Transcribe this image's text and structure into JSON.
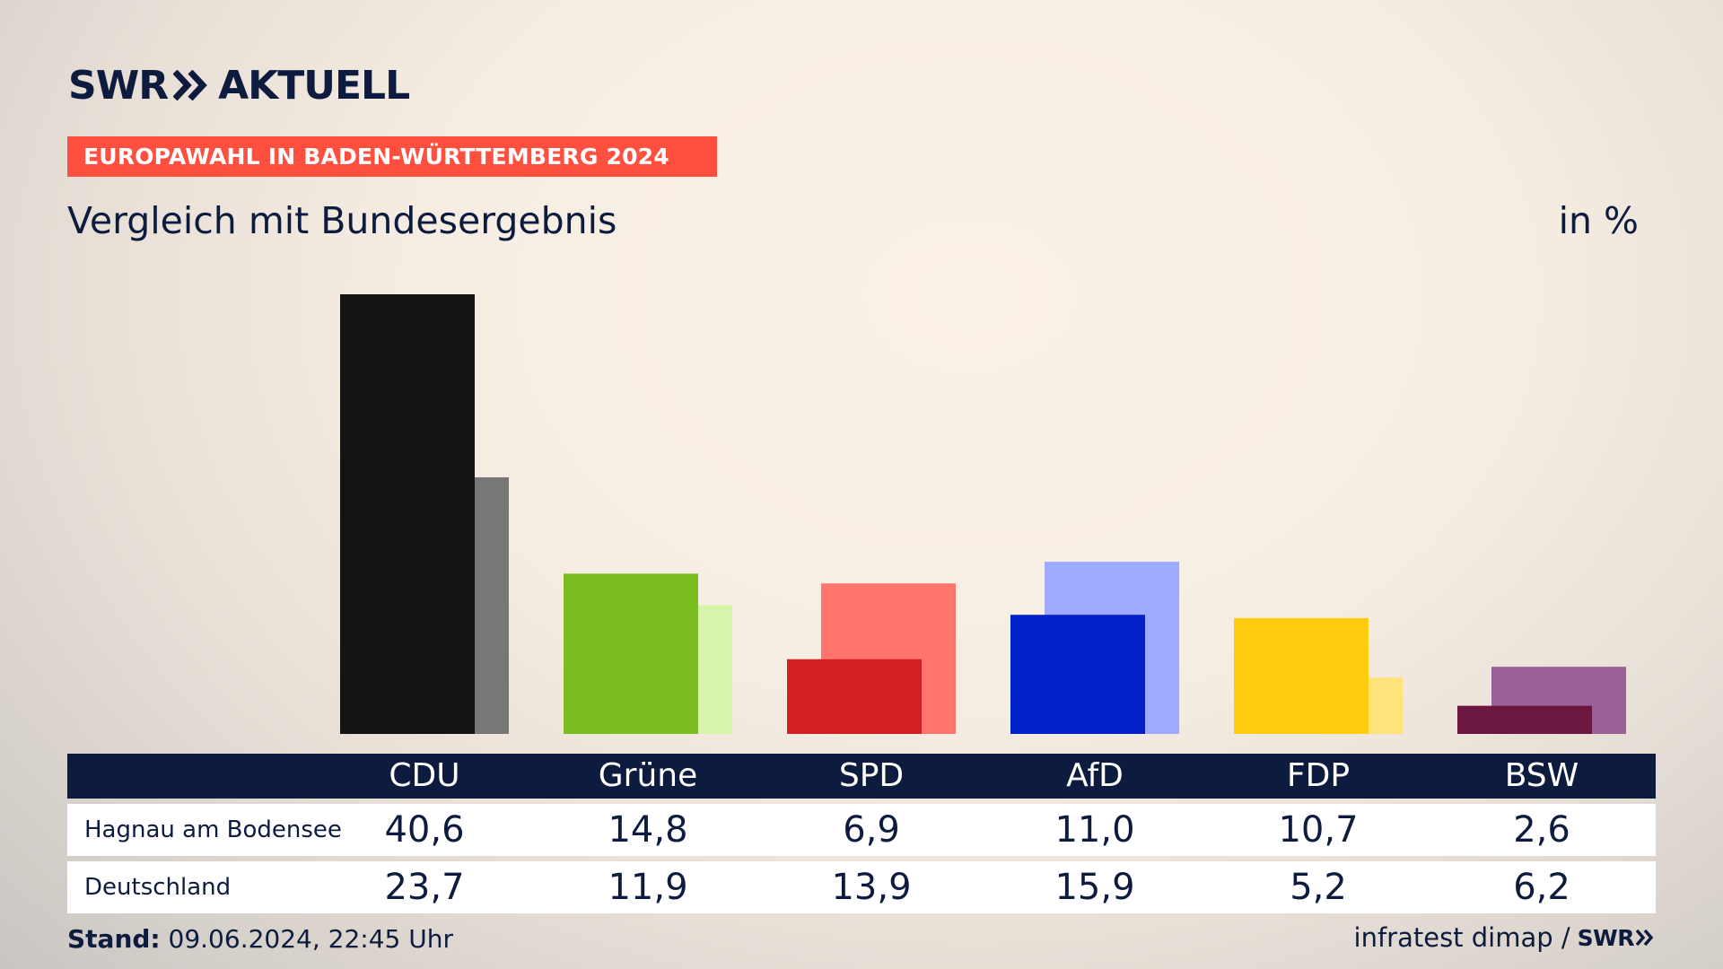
{
  "brand": {
    "name": "SWR",
    "product": "AKTUELL",
    "color": "#0d1b3e"
  },
  "banner": {
    "text": "EUROPAWAHL IN BADEN-WÜRTTEMBERG 2024",
    "color": "#fe4f3f"
  },
  "subtitle": "Vergleich mit Bundesergebnis",
  "unit": "in %",
  "chart_data": {
    "type": "bar",
    "categories": [
      "CDU",
      "Grüne",
      "SPD",
      "AfD",
      "FDP",
      "BSW"
    ],
    "series": [
      {
        "name": "Hagnau am Bodensee",
        "values": [
          40.6,
          14.8,
          6.9,
          11.0,
          10.7,
          2.6
        ],
        "colors": [
          "#131313",
          "#79bd1e",
          "#d31e22",
          "#0021c8",
          "#ffcd0d",
          "#6b173f"
        ]
      },
      {
        "name": "Deutschland",
        "values": [
          23.7,
          11.9,
          13.9,
          15.9,
          5.2,
          6.2
        ],
        "colors": [
          "#777776",
          "#d6f5aa",
          "#ff756e",
          "#9eaaff",
          "#ffe37a",
          "#9a6098"
        ]
      }
    ],
    "value_labels": [
      [
        "40,6",
        "14,8",
        "6,9",
        "11,0",
        "10,7",
        "2,6"
      ],
      [
        "23,7",
        "11,9",
        "13,9",
        "15,9",
        "5,2",
        "6,2"
      ]
    ],
    "ylim": [
      0,
      40.6
    ]
  },
  "footer": {
    "stand_label": "Stand:",
    "stand_value": "09.06.2024, 22:45 Uhr",
    "source": "infratest dimap /",
    "source_logo": "SWR"
  }
}
